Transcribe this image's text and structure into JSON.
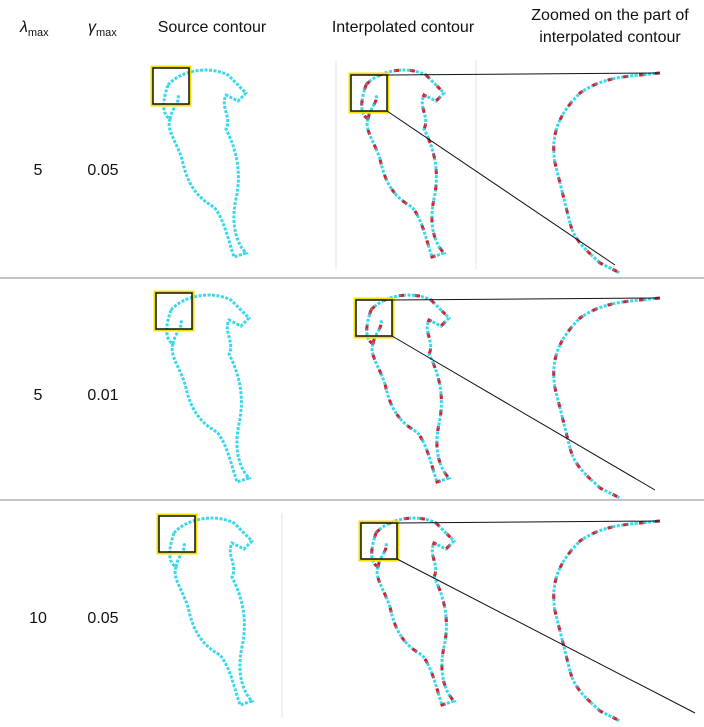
{
  "table": {
    "headers": [
      {
        "symbol": "λ",
        "subscript": "max"
      },
      {
        "symbol": "γ",
        "subscript": "max"
      },
      "Source contour",
      "Interpolated contour",
      [
        "Zoomed on the part of",
        "interpolated contour"
      ]
    ],
    "rows": [
      [
        "5",
        "0.05"
      ],
      [
        "5",
        "0.01"
      ],
      [
        "10",
        "0.05"
      ]
    ]
  }
}
